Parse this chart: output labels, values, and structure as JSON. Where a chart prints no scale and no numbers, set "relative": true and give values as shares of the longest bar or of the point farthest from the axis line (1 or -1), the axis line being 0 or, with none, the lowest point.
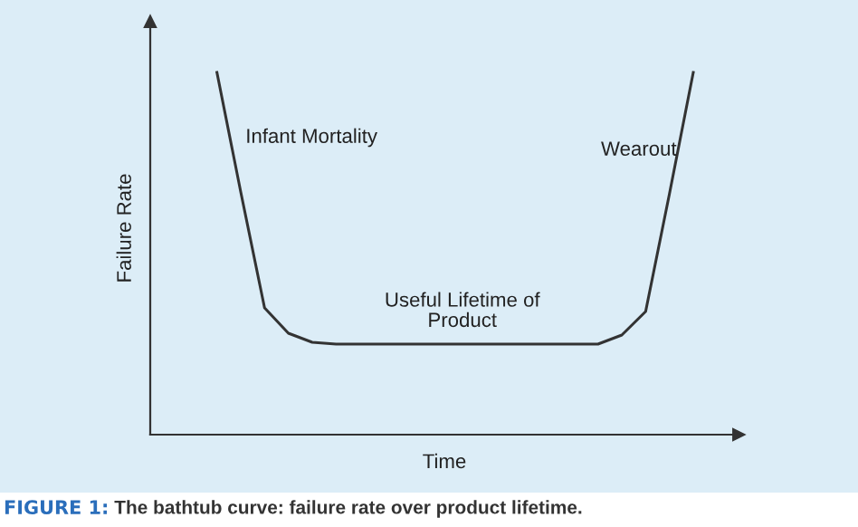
{
  "chart_data": {
    "type": "line",
    "relative": true,
    "xlabel": "Time",
    "ylabel": "Failure Rate",
    "categories": [
      null,
      null,
      null,
      null,
      null,
      null,
      null,
      null,
      null,
      null,
      null,
      null,
      null,
      null,
      null,
      null,
      null,
      null,
      null,
      null,
      null
    ],
    "series": [
      {
        "color": "#333333",
        "values": [
          1.0,
          0.67,
          0.35,
          0.28,
          0.255,
          0.25,
          0.25,
          0.25,
          0.25,
          0.25,
          0.25,
          0.25,
          0.25,
          0.25,
          0.25,
          0.25,
          0.25,
          0.275,
          0.34,
          0.665,
          1.0
        ]
      }
    ],
    "annotations": [
      "Infant Mortality",
      "Wearout",
      "Useful Lifetime of\nProduct",
      "FIGURE 1:",
      "The bathtub curve: failure rate over product lifetime."
    ],
    "marker": "none",
    "line_style": "solid",
    "grid": false,
    "legend": false
  }
}
